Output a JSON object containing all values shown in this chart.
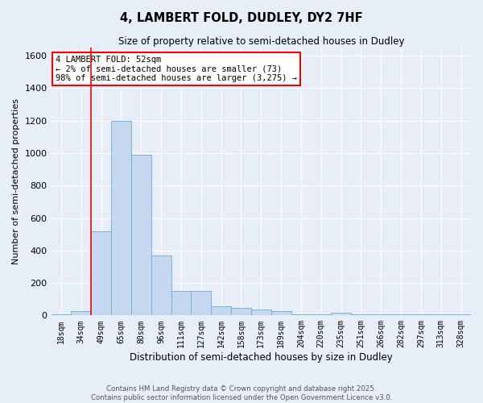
{
  "title_line1": "4, LAMBERT FOLD, DUDLEY, DY2 7HF",
  "title_line2": "Size of property relative to semi-detached houses in Dudley",
  "xlabel": "Distribution of semi-detached houses by size in Dudley",
  "ylabel": "Number of semi-detached properties",
  "categories": [
    "18sqm",
    "34sqm",
    "49sqm",
    "65sqm",
    "80sqm",
    "96sqm",
    "111sqm",
    "127sqm",
    "142sqm",
    "158sqm",
    "173sqm",
    "189sqm",
    "204sqm",
    "220sqm",
    "235sqm",
    "251sqm",
    "266sqm",
    "282sqm",
    "297sqm",
    "313sqm",
    "328sqm"
  ],
  "values": [
    5,
    25,
    520,
    1200,
    990,
    370,
    150,
    150,
    55,
    45,
    35,
    25,
    5,
    5,
    15,
    5,
    5,
    5,
    5,
    5,
    5
  ],
  "bar_color": "#c5d8f0",
  "bar_edge_color": "#6aaed6",
  "background_color": "#e8eef7",
  "grid_color": "#ffffff",
  "redline_x": 1.5,
  "ylim": [
    0,
    1650
  ],
  "yticks": [
    0,
    200,
    400,
    600,
    800,
    1000,
    1200,
    1400,
    1600
  ],
  "annotation_text": "4 LAMBERT FOLD: 52sqm\n← 2% of semi-detached houses are smaller (73)\n98% of semi-detached houses are larger (3,275) →",
  "footnote1": "Contains HM Land Registry data © Crown copyright and database right 2025.",
  "footnote2": "Contains public sector information licensed under the Open Government Licence v3.0."
}
